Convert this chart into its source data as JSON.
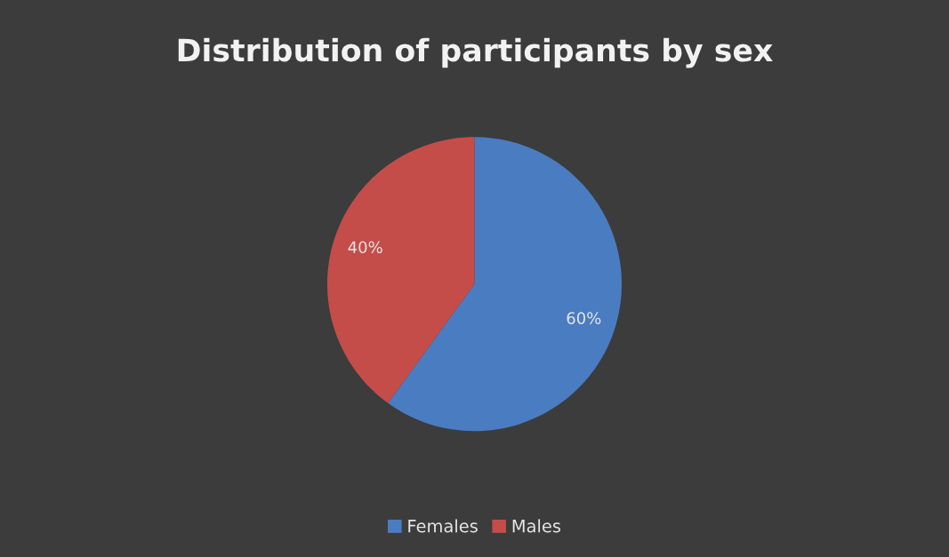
{
  "chart_data": {
    "type": "pie",
    "title": "Distribution of participants by sex",
    "categories": [
      "Females",
      "Males"
    ],
    "values": [
      60,
      40
    ],
    "colors": [
      "#4a7cc2",
      "#c44d4a"
    ],
    "value_labels": [
      "60%",
      "40%"
    ],
    "legend": "bottom"
  }
}
